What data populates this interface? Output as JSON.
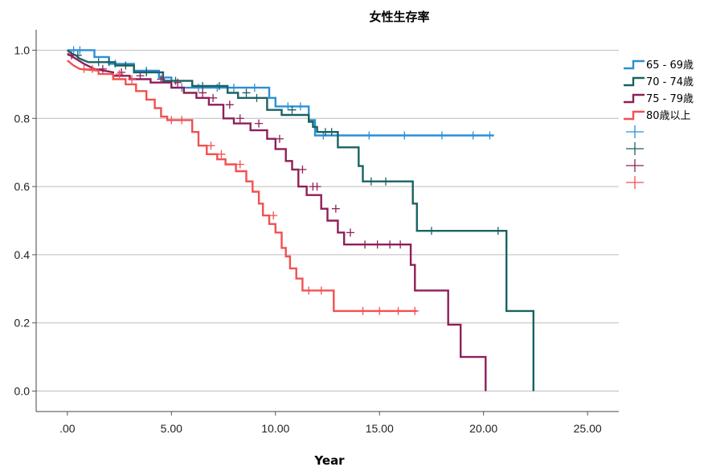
{
  "chart_data": {
    "type": "line",
    "title": "女性生存率",
    "xlabel": "Year",
    "ylabel": "",
    "xlim": [
      -1.5,
      26.5
    ],
    "ylim": [
      -0.06,
      1.06
    ],
    "x_ticks": [
      ".00",
      "5.00",
      "10.00",
      "15.00",
      "20.00",
      "25.00"
    ],
    "x_tick_values": [
      0,
      5,
      10,
      15,
      20,
      25
    ],
    "y_ticks": [
      "0.0",
      "0.2",
      "0.4",
      "0.6",
      "0.8",
      "1.0"
    ],
    "y_tick_values": [
      0,
      0.2,
      0.4,
      0.6,
      0.8,
      1.0
    ],
    "grid": "horizontal",
    "legend_position": "right",
    "censored_legend_label": "",
    "series": [
      {
        "name": "65 - 69歳",
        "color": "#2b8fd6",
        "points": [
          [
            0,
            1.0
          ],
          [
            1.3,
            1.0
          ],
          [
            1.3,
            0.98
          ],
          [
            2.0,
            0.98
          ],
          [
            2.0,
            0.96
          ],
          [
            3.2,
            0.96
          ],
          [
            3.2,
            0.94
          ],
          [
            4.4,
            0.94
          ],
          [
            4.4,
            0.92
          ],
          [
            5.0,
            0.92
          ],
          [
            5.0,
            0.89
          ],
          [
            9.7,
            0.89
          ],
          [
            9.7,
            0.86
          ],
          [
            10.0,
            0.86
          ],
          [
            10.0,
            0.835
          ],
          [
            11.6,
            0.835
          ],
          [
            11.6,
            0.795
          ],
          [
            11.9,
            0.795
          ],
          [
            11.9,
            0.75
          ],
          [
            20.5,
            0.75
          ]
        ],
        "censored": [
          [
            0.3,
            1.0
          ],
          [
            0.6,
            1.0
          ],
          [
            2.3,
            0.96
          ],
          [
            3.8,
            0.94
          ],
          [
            5.5,
            0.89
          ],
          [
            6.3,
            0.89
          ],
          [
            7.2,
            0.89
          ],
          [
            8.0,
            0.89
          ],
          [
            9.0,
            0.89
          ],
          [
            10.6,
            0.835
          ],
          [
            11.2,
            0.835
          ],
          [
            12.3,
            0.75
          ],
          [
            13.0,
            0.75
          ],
          [
            14.5,
            0.75
          ],
          [
            16.2,
            0.75
          ],
          [
            18.0,
            0.75
          ],
          [
            19.5,
            0.75
          ],
          [
            20.3,
            0.75
          ]
        ]
      },
      {
        "name": "70 - 74歳",
        "color": "#1a6262",
        "points": [
          [
            0,
            1.0
          ],
          [
            0.2,
            0.99
          ],
          [
            0.4,
            0.985
          ],
          [
            0.6,
            0.975
          ],
          [
            1.0,
            0.965
          ],
          [
            2.3,
            0.965
          ],
          [
            2.3,
            0.955
          ],
          [
            3.2,
            0.955
          ],
          [
            3.2,
            0.935
          ],
          [
            4.6,
            0.935
          ],
          [
            4.6,
            0.91
          ],
          [
            6.0,
            0.91
          ],
          [
            6.0,
            0.895
          ],
          [
            7.7,
            0.895
          ],
          [
            7.7,
            0.875
          ],
          [
            8.2,
            0.875
          ],
          [
            8.2,
            0.86
          ],
          [
            9.6,
            0.86
          ],
          [
            9.6,
            0.825
          ],
          [
            10.3,
            0.825
          ],
          [
            10.3,
            0.81
          ],
          [
            11.6,
            0.81
          ],
          [
            11.6,
            0.79
          ],
          [
            11.8,
            0.79
          ],
          [
            11.8,
            0.775
          ],
          [
            12.0,
            0.775
          ],
          [
            12.0,
            0.76
          ],
          [
            13.0,
            0.76
          ],
          [
            13.0,
            0.715
          ],
          [
            14.0,
            0.715
          ],
          [
            14.0,
            0.66
          ],
          [
            14.2,
            0.66
          ],
          [
            14.2,
            0.615
          ],
          [
            16.6,
            0.615
          ],
          [
            16.6,
            0.55
          ],
          [
            16.8,
            0.55
          ],
          [
            16.8,
            0.47
          ],
          [
            21.1,
            0.47
          ],
          [
            21.1,
            0.235
          ],
          [
            22.4,
            0.235
          ],
          [
            22.4,
            0.0
          ]
        ],
        "censored": [
          [
            0.5,
            0.985
          ],
          [
            1.5,
            0.965
          ],
          [
            2.0,
            0.965
          ],
          [
            2.8,
            0.955
          ],
          [
            3.8,
            0.935
          ],
          [
            5.2,
            0.91
          ],
          [
            6.5,
            0.895
          ],
          [
            7.3,
            0.895
          ],
          [
            8.6,
            0.875
          ],
          [
            9.1,
            0.86
          ],
          [
            10.8,
            0.825
          ],
          [
            12.4,
            0.76
          ],
          [
            12.7,
            0.76
          ],
          [
            14.6,
            0.615
          ],
          [
            15.3,
            0.615
          ],
          [
            17.5,
            0.47
          ],
          [
            20.7,
            0.47
          ]
        ]
      },
      {
        "name": "75 - 79歳",
        "color": "#8f1f58",
        "points": [
          [
            0,
            0.99
          ],
          [
            0.4,
            0.975
          ],
          [
            0.8,
            0.96
          ],
          [
            1.3,
            0.945
          ],
          [
            2.2,
            0.935
          ],
          [
            2.2,
            0.925
          ],
          [
            3.0,
            0.925
          ],
          [
            3.0,
            0.915
          ],
          [
            4.0,
            0.915
          ],
          [
            4.0,
            0.905
          ],
          [
            5.0,
            0.905
          ],
          [
            5.0,
            0.89
          ],
          [
            5.6,
            0.89
          ],
          [
            5.6,
            0.875
          ],
          [
            6.2,
            0.875
          ],
          [
            6.2,
            0.86
          ],
          [
            6.8,
            0.86
          ],
          [
            6.8,
            0.84
          ],
          [
            7.5,
            0.84
          ],
          [
            7.5,
            0.8
          ],
          [
            8.0,
            0.8
          ],
          [
            8.0,
            0.785
          ],
          [
            8.8,
            0.785
          ],
          [
            8.8,
            0.765
          ],
          [
            9.6,
            0.765
          ],
          [
            9.6,
            0.74
          ],
          [
            10.0,
            0.74
          ],
          [
            10.0,
            0.71
          ],
          [
            10.5,
            0.71
          ],
          [
            10.5,
            0.675
          ],
          [
            10.8,
            0.675
          ],
          [
            10.8,
            0.65
          ],
          [
            11.1,
            0.65
          ],
          [
            11.1,
            0.6
          ],
          [
            11.5,
            0.6
          ],
          [
            11.5,
            0.575
          ],
          [
            12.2,
            0.575
          ],
          [
            12.2,
            0.535
          ],
          [
            12.5,
            0.535
          ],
          [
            12.5,
            0.5
          ],
          [
            13.0,
            0.5
          ],
          [
            13.0,
            0.465
          ],
          [
            13.3,
            0.465
          ],
          [
            13.3,
            0.43
          ],
          [
            16.5,
            0.43
          ],
          [
            16.5,
            0.37
          ],
          [
            16.7,
            0.37
          ],
          [
            16.7,
            0.295
          ],
          [
            18.3,
            0.295
          ],
          [
            18.3,
            0.195
          ],
          [
            18.9,
            0.195
          ],
          [
            18.9,
            0.1
          ],
          [
            20.1,
            0.1
          ],
          [
            20.1,
            0.0
          ]
        ],
        "censored": [
          [
            0.2,
            0.985
          ],
          [
            1.7,
            0.945
          ],
          [
            2.6,
            0.935
          ],
          [
            3.5,
            0.925
          ],
          [
            4.5,
            0.915
          ],
          [
            5.3,
            0.905
          ],
          [
            6.5,
            0.875
          ],
          [
            7.0,
            0.86
          ],
          [
            7.8,
            0.84
          ],
          [
            8.3,
            0.8
          ],
          [
            9.2,
            0.785
          ],
          [
            10.2,
            0.74
          ],
          [
            11.3,
            0.65
          ],
          [
            11.8,
            0.6
          ],
          [
            12.0,
            0.6
          ],
          [
            12.9,
            0.535
          ],
          [
            13.6,
            0.465
          ],
          [
            14.3,
            0.43
          ],
          [
            14.9,
            0.43
          ],
          [
            15.5,
            0.43
          ],
          [
            16.0,
            0.43
          ]
        ]
      },
      {
        "name": "80歳以上",
        "color": "#f25050",
        "points": [
          [
            0,
            0.97
          ],
          [
            0.3,
            0.955
          ],
          [
            0.6,
            0.945
          ],
          [
            1.5,
            0.94
          ],
          [
            1.5,
            0.93
          ],
          [
            2.2,
            0.93
          ],
          [
            2.2,
            0.915
          ],
          [
            2.8,
            0.915
          ],
          [
            2.8,
            0.9
          ],
          [
            3.3,
            0.9
          ],
          [
            3.3,
            0.88
          ],
          [
            3.8,
            0.88
          ],
          [
            3.8,
            0.855
          ],
          [
            4.2,
            0.855
          ],
          [
            4.2,
            0.83
          ],
          [
            4.5,
            0.83
          ],
          [
            4.5,
            0.805
          ],
          [
            4.8,
            0.805
          ],
          [
            4.8,
            0.795
          ],
          [
            6.0,
            0.795
          ],
          [
            6.0,
            0.76
          ],
          [
            6.3,
            0.76
          ],
          [
            6.3,
            0.72
          ],
          [
            6.7,
            0.72
          ],
          [
            6.7,
            0.695
          ],
          [
            7.2,
            0.695
          ],
          [
            7.2,
            0.68
          ],
          [
            7.6,
            0.68
          ],
          [
            7.6,
            0.665
          ],
          [
            8.1,
            0.665
          ],
          [
            8.1,
            0.645
          ],
          [
            8.6,
            0.645
          ],
          [
            8.6,
            0.615
          ],
          [
            8.9,
            0.615
          ],
          [
            8.9,
            0.585
          ],
          [
            9.2,
            0.585
          ],
          [
            9.2,
            0.55
          ],
          [
            9.4,
            0.55
          ],
          [
            9.4,
            0.515
          ],
          [
            9.7,
            0.515
          ],
          [
            9.7,
            0.49
          ],
          [
            10.0,
            0.49
          ],
          [
            10.0,
            0.465
          ],
          [
            10.3,
            0.465
          ],
          [
            10.3,
            0.42
          ],
          [
            10.5,
            0.42
          ],
          [
            10.5,
            0.395
          ],
          [
            10.7,
            0.395
          ],
          [
            10.7,
            0.36
          ],
          [
            11.0,
            0.36
          ],
          [
            11.0,
            0.33
          ],
          [
            11.3,
            0.33
          ],
          [
            11.3,
            0.295
          ],
          [
            12.8,
            0.295
          ],
          [
            12.8,
            0.235
          ],
          [
            16.8,
            0.235
          ]
        ],
        "censored": [
          [
            0.8,
            0.945
          ],
          [
            1.2,
            0.945
          ],
          [
            2.5,
            0.93
          ],
          [
            3.1,
            0.915
          ],
          [
            5.0,
            0.795
          ],
          [
            5.5,
            0.795
          ],
          [
            6.9,
            0.72
          ],
          [
            7.4,
            0.695
          ],
          [
            8.3,
            0.665
          ],
          [
            9.9,
            0.515
          ],
          [
            11.6,
            0.295
          ],
          [
            12.2,
            0.295
          ],
          [
            14.2,
            0.235
          ],
          [
            15.0,
            0.235
          ],
          [
            15.9,
            0.235
          ],
          [
            16.7,
            0.235
          ]
        ]
      }
    ]
  }
}
